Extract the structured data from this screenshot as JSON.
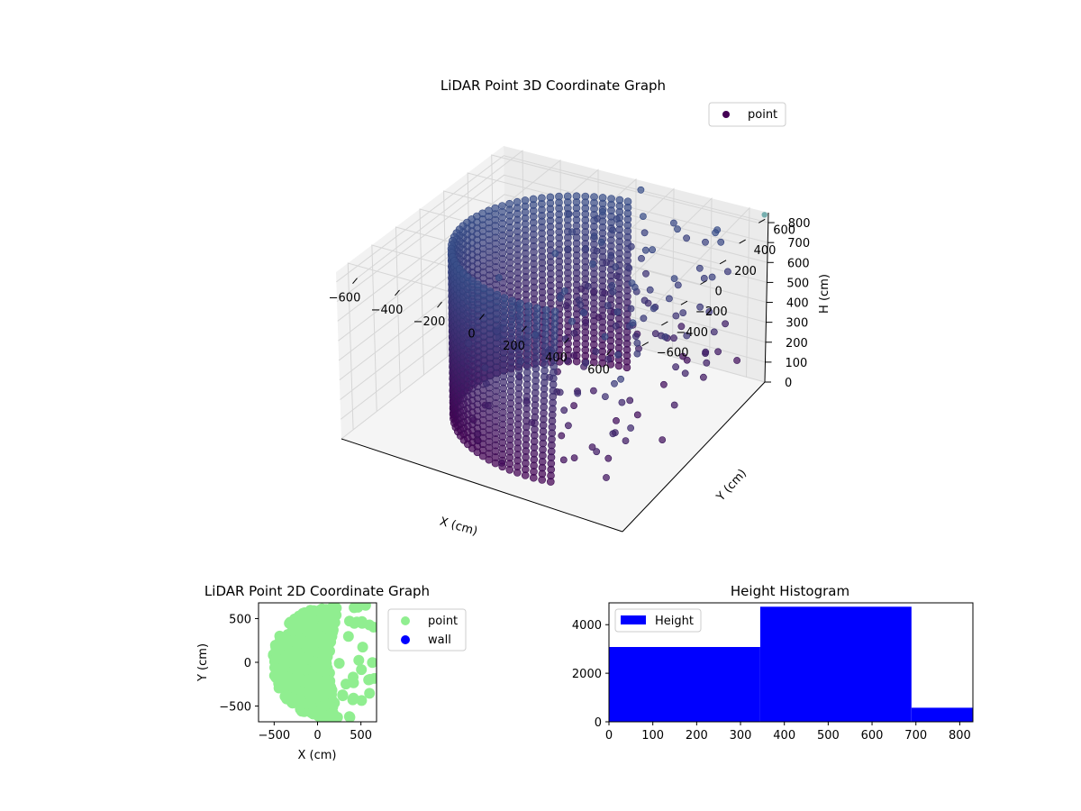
{
  "chart_data": [
    {
      "type": "scatter3d",
      "title": "LiDAR Point 3D Coordinate Graph",
      "xlabel": "X (cm)",
      "ylabel": "Y (cm)",
      "zlabel": "H (cm)",
      "xlim": [
        -700,
        700
      ],
      "ylim": [
        -700,
        700
      ],
      "zlim": [
        0,
        850
      ],
      "z_inverted": true,
      "xticks": [
        -600,
        -400,
        -200,
        0,
        200,
        400,
        600
      ],
      "yticks": [
        -600,
        -400,
        -200,
        0,
        200,
        400,
        600
      ],
      "zticks": [
        0,
        100,
        200,
        300,
        400,
        500,
        600,
        700,
        800
      ],
      "grid": true,
      "legend": {
        "position": "top-right",
        "entries": [
          "point"
        ]
      },
      "series": [
        {
          "name": "point",
          "color": "#440154",
          "colormap": "viridis",
          "shape": {
            "wall_radius_cm": 580,
            "wall_arc_deg": [
              95,
              285
            ],
            "wall_height_cm": [
              0,
              850
            ],
            "scattered_points_x_range": [
              -200,
              650
            ],
            "scattered_points_y_range": [
              -650,
              650
            ]
          }
        }
      ]
    },
    {
      "type": "scatter",
      "title": "LiDAR Point 2D Coordinate Graph",
      "xlabel": "X (cm)",
      "ylabel": "Y (cm)",
      "xlim": [
        -680,
        680
      ],
      "ylim": [
        -680,
        680
      ],
      "xticks": [
        -500,
        0,
        500
      ],
      "yticks": [
        -500,
        0,
        500
      ],
      "legend": {
        "position": "outside-right",
        "entries": [
          "point",
          "wall"
        ]
      },
      "series": [
        {
          "name": "point",
          "color": "#90ee90"
        },
        {
          "name": "wall",
          "color": "#0000ff"
        }
      ]
    },
    {
      "type": "histogram",
      "title": "Height Histogram",
      "xlim": [
        0,
        830
      ],
      "ylim": [
        0,
        4900
      ],
      "xticks": [
        0,
        100,
        200,
        300,
        400,
        500,
        600,
        700,
        800
      ],
      "yticks": [
        0,
        2000,
        4000
      ],
      "color": "#0000ff",
      "legend": {
        "position": "top-left",
        "entries": [
          "Height"
        ]
      },
      "bins": [
        {
          "start": 0,
          "end": 345,
          "count": 3080
        },
        {
          "start": 345,
          "end": 690,
          "count": 4740
        },
        {
          "start": 690,
          "end": 830,
          "count": 580
        }
      ]
    }
  ]
}
